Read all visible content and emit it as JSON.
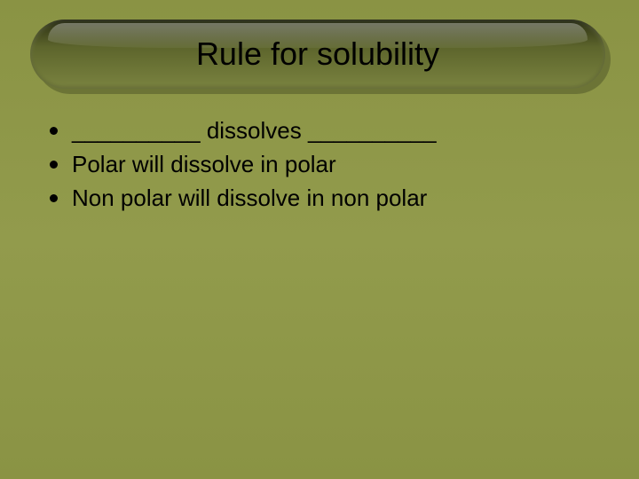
{
  "background": {
    "gradient_top": "#8a9344",
    "gradient_mid": "#929b4c",
    "gradient_bottom": "#8a9344"
  },
  "title": {
    "text": "Rule for solubility",
    "fontsize": 36,
    "color": "#000000",
    "bar_gradient_top": "#1a1e0a",
    "bar_gradient_bottom": "#7a8340",
    "bar_shadow_color": "#6c7436",
    "bar_radius": 40
  },
  "bullets": {
    "dot_color": "#000000",
    "text_color": "#000000",
    "fontsize": 26,
    "items": [
      "__________ dissolves __________",
      "Polar will dissolve in polar",
      "Non polar will dissolve in non polar"
    ]
  }
}
